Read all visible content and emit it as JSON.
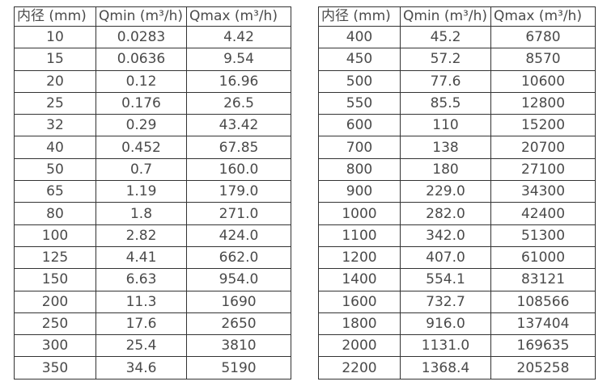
{
  "colors": {
    "background": "#ffffff",
    "border": "#333333",
    "text": "#4a4a4a"
  },
  "tables": [
    {
      "headers": [
        "内径 (mm)",
        "Qmin (m³/h)",
        "Qmax (m³/h)"
      ],
      "rows": [
        [
          "10",
          "0.0283",
          "4.42"
        ],
        [
          "15",
          "0.0636",
          "9.54"
        ],
        [
          "20",
          "0.12",
          "16.96"
        ],
        [
          "25",
          "0.176",
          "26.5"
        ],
        [
          "32",
          "0.29",
          "43.42"
        ],
        [
          "40",
          "0.452",
          "67.85"
        ],
        [
          "50",
          "0.7",
          "160.0"
        ],
        [
          "65",
          "1.19",
          "179.0"
        ],
        [
          "80",
          "1.8",
          "271.0"
        ],
        [
          "100",
          "2.82",
          "424.0"
        ],
        [
          "125",
          "4.41",
          "662.0"
        ],
        [
          "150",
          "6.63",
          "954.0"
        ],
        [
          "200",
          "11.3",
          "1690"
        ],
        [
          "250",
          "17.6",
          "2650"
        ],
        [
          "300",
          "25.4",
          "3810"
        ],
        [
          "350",
          "34.6",
          "5190"
        ]
      ]
    },
    {
      "headers": [
        "内径 (mm)",
        "Qmin (m³/h)",
        "Qmax (m³/h)"
      ],
      "rows": [
        [
          "400",
          "45.2",
          "6780"
        ],
        [
          "450",
          "57.2",
          "8570"
        ],
        [
          "500",
          "77.6",
          "10600"
        ],
        [
          "550",
          "85.5",
          "12800"
        ],
        [
          "600",
          "110",
          "15200"
        ],
        [
          "700",
          "138",
          "20700"
        ],
        [
          "800",
          "180",
          "27100"
        ],
        [
          "900",
          "229.0",
          "34300"
        ],
        [
          "1000",
          "282.0",
          "42400"
        ],
        [
          "1100",
          "342.0",
          "51300"
        ],
        [
          "1200",
          "407.0",
          "61000"
        ],
        [
          "1400",
          "554.1",
          "83121"
        ],
        [
          "1600",
          "732.7",
          "108566"
        ],
        [
          "1800",
          "916.0",
          "137404"
        ],
        [
          "2000",
          "1131.0",
          "169635"
        ],
        [
          "2200",
          "1368.4",
          "205258"
        ]
      ]
    }
  ]
}
